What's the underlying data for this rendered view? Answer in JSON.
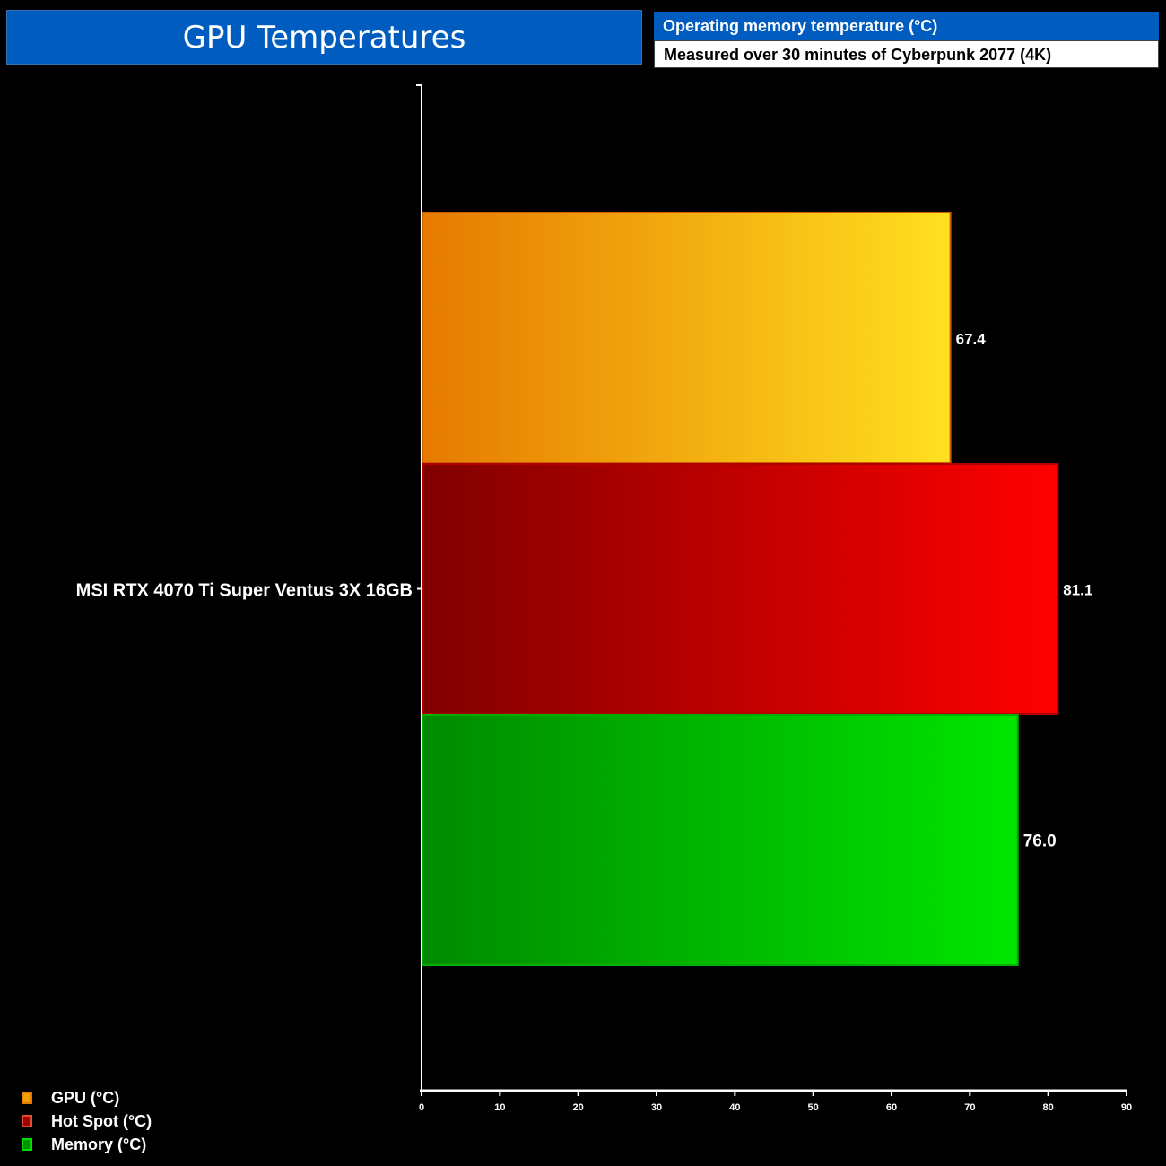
{
  "header": {
    "title": "GPU Temperatures",
    "subtitle": "Operating memory temperature (°C)",
    "note": "Measured over 30 minutes of Cyberpunk 2077 (4K)"
  },
  "chart_data": {
    "type": "bar",
    "orientation": "horizontal",
    "title": "GPU Temperatures",
    "categories": [
      "MSI RTX 4070 Ti Super Ventus 3X 16GB"
    ],
    "series": [
      {
        "name": "GPU (°C)",
        "values": [
          67.4
        ],
        "labels": [
          "67.4"
        ],
        "color_start": "#e67a00",
        "color_end": "#ffe020"
      },
      {
        "name": "Hot Spot (°C)",
        "values": [
          81.1
        ],
        "labels": [
          "81.1"
        ],
        "color_start": "#800000",
        "color_end": "#ff0000"
      },
      {
        "name": "Memory (°C)",
        "values": [
          76.0
        ],
        "labels": [
          "76.0"
        ],
        "color_start": "#008a00",
        "color_end": "#00e600"
      }
    ],
    "xlim": [
      0,
      90
    ],
    "xticks": [
      "0",
      "10",
      "20",
      "30",
      "40",
      "50",
      "60",
      "70",
      "80",
      "90"
    ],
    "legend": "bottom-left",
    "grid": false
  }
}
